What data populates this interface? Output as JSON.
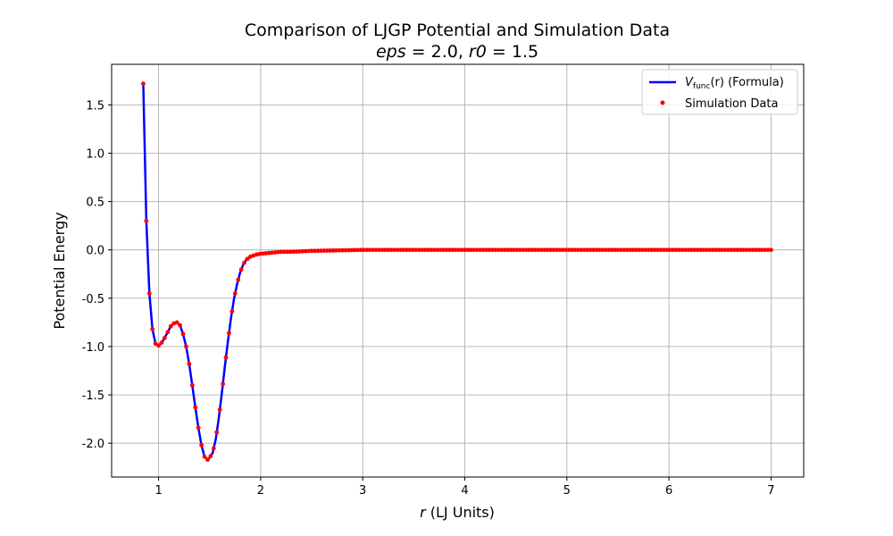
{
  "chart_data": {
    "type": "line",
    "title": "Comparison of LJGP Potential and Simulation Data",
    "subtitle": {
      "eps_name": "eps",
      "eps_value": "2.0",
      "r0_name": "r0",
      "r0_value": "1.5"
    },
    "xlabel": {
      "var": "r",
      "units": " (LJ Units)"
    },
    "ylabel": "Potential Energy",
    "xlim": [
      0.54,
      7.32
    ],
    "ylim": [
      -2.35,
      1.92
    ],
    "xticks": [
      1,
      2,
      3,
      4,
      5,
      6,
      7
    ],
    "yticks": [
      -2.0,
      -1.5,
      -1.0,
      -0.5,
      0.0,
      0.5,
      1.0,
      1.5
    ],
    "grid": true,
    "legend_position": "top-right",
    "legend": {
      "line_label_var": "V",
      "line_label_sub": "func",
      "line_label_arg": "(r)",
      "line_label_suffix": " (Formula)",
      "scatter_label": "Simulation Data"
    },
    "colors": {
      "line": "#0000ff",
      "scatter": "#ff0000",
      "grid": "#b0b0b0"
    },
    "series": [
      {
        "kind": "line",
        "x": [
          0.85,
          0.88,
          0.91,
          0.94,
          0.97,
          1.0,
          1.03,
          1.06,
          1.09,
          1.12,
          1.15,
          1.18,
          1.21,
          1.24,
          1.27,
          1.3,
          1.33,
          1.36,
          1.39,
          1.42,
          1.45,
          1.48,
          1.5,
          1.53,
          1.56,
          1.59,
          1.62,
          1.65,
          1.68,
          1.71,
          1.74,
          1.77,
          1.8,
          1.83,
          1.86,
          1.9,
          1.95,
          2.0,
          2.1,
          2.2,
          2.3,
          2.5,
          2.75,
          3.0,
          3.5,
          4.0,
          4.5,
          5.0,
          5.5,
          6.0,
          6.5,
          7.0
        ],
        "y": [
          1.72,
          0.3,
          -0.45,
          -0.82,
          -0.97,
          -0.99,
          -0.96,
          -0.91,
          -0.85,
          -0.79,
          -0.76,
          -0.75,
          -0.78,
          -0.87,
          -1.0,
          -1.18,
          -1.4,
          -1.63,
          -1.84,
          -2.02,
          -2.14,
          -2.17,
          -2.15,
          -2.1,
          -1.96,
          -1.74,
          -1.48,
          -1.2,
          -0.94,
          -0.7,
          -0.5,
          -0.35,
          -0.23,
          -0.15,
          -0.1,
          -0.07,
          -0.05,
          -0.04,
          -0.03,
          -0.02,
          -0.02,
          -0.01,
          -0.005,
          0.0,
          0.0,
          0.0,
          0.0,
          0.0,
          0.0,
          0.0,
          0.0,
          0.0
        ]
      },
      {
        "kind": "scatter",
        "x_start": 0.85,
        "x_end": 7.0,
        "x_step": 0.03
      }
    ]
  }
}
